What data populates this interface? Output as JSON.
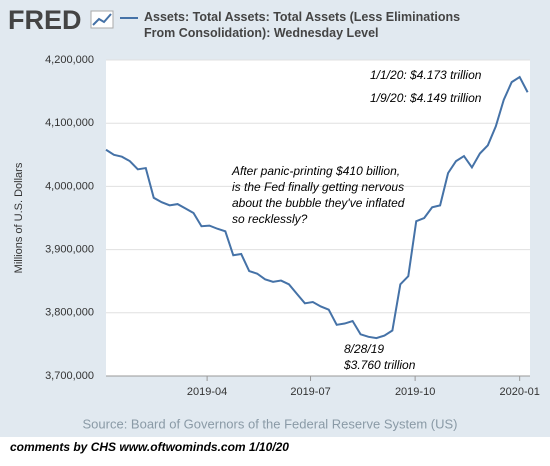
{
  "logo": "FRED",
  "footer": "comments by CHS  www.oftwominds.com   1/10/20",
  "chart_data": {
    "type": "line",
    "ylabel": "Millions of U.S. Dollars",
    "source": "Source: Board of Governors of the Federal Reserve System (US)",
    "annotations": [
      [
        "1/1/20: $4.173 trillion"
      ],
      [
        "1/9/20: $4.149 trillion"
      ],
      [
        "After panic-printing $410 billion,",
        "is the Fed finally getting nervous",
        "about the bubble they've inflated",
        "so recklessly?"
      ],
      [
        "8/28/19",
        "$3.760 trillion"
      ]
    ],
    "x": [
      0,
      1,
      2,
      3,
      4,
      5,
      6,
      7,
      8,
      9,
      10,
      11,
      12,
      13,
      14,
      15,
      16,
      17,
      18,
      19,
      20,
      21,
      22,
      23,
      24,
      25,
      26,
      27,
      28,
      29,
      30,
      31,
      32,
      33,
      34,
      35,
      36,
      37,
      38,
      39,
      40,
      41,
      42,
      43,
      44,
      45,
      46,
      47,
      48,
      49,
      50,
      51,
      52,
      53
    ],
    "xlim": [
      0,
      53.3
    ],
    "xticks": [
      {
        "value": 12.71,
        "label": "2019-04"
      },
      {
        "value": 25.71,
        "label": "2019-07"
      },
      {
        "value": 38.86,
        "label": "2019-10"
      },
      {
        "value": 52,
        "label": "2020-01"
      }
    ],
    "ylim": [
      3700000,
      4200000
    ],
    "yticks": [
      {
        "value": 3700000,
        "label": "3,700,000"
      },
      {
        "value": 3800000,
        "label": "3,800,000"
      },
      {
        "value": 3900000,
        "label": "3,900,000"
      },
      {
        "value": 4000000,
        "label": "4,000,000"
      },
      {
        "value": 4100000,
        "label": "4,100,000"
      },
      {
        "value": 4200000,
        "label": "4,200,000"
      }
    ],
    "grid": true,
    "series": [
      {
        "name": "Assets: Total Assets: Total Assets (Less Eliminations From Consolidation): Wednesday Level",
        "color": "#4572a7",
        "values": [
          4058000,
          4050000,
          4047000,
          4040000,
          4027000,
          4029000,
          3982000,
          3975000,
          3970000,
          3972000,
          3965000,
          3958000,
          3937000,
          3938000,
          3933000,
          3929000,
          3891000,
          3893000,
          3866000,
          3862000,
          3853000,
          3849000,
          3851000,
          3845000,
          3830000,
          3815000,
          3817000,
          3810000,
          3805000,
          3781000,
          3783000,
          3787000,
          3766000,
          3762000,
          3760000,
          3764000,
          3772000,
          3845000,
          3858000,
          3945000,
          3950000,
          3967000,
          3970000,
          4021000,
          4040000,
          4048000,
          4030000,
          4052000,
          4065000,
          4095000,
          4137000,
          4165000,
          4173000,
          4149000
        ]
      }
    ]
  }
}
